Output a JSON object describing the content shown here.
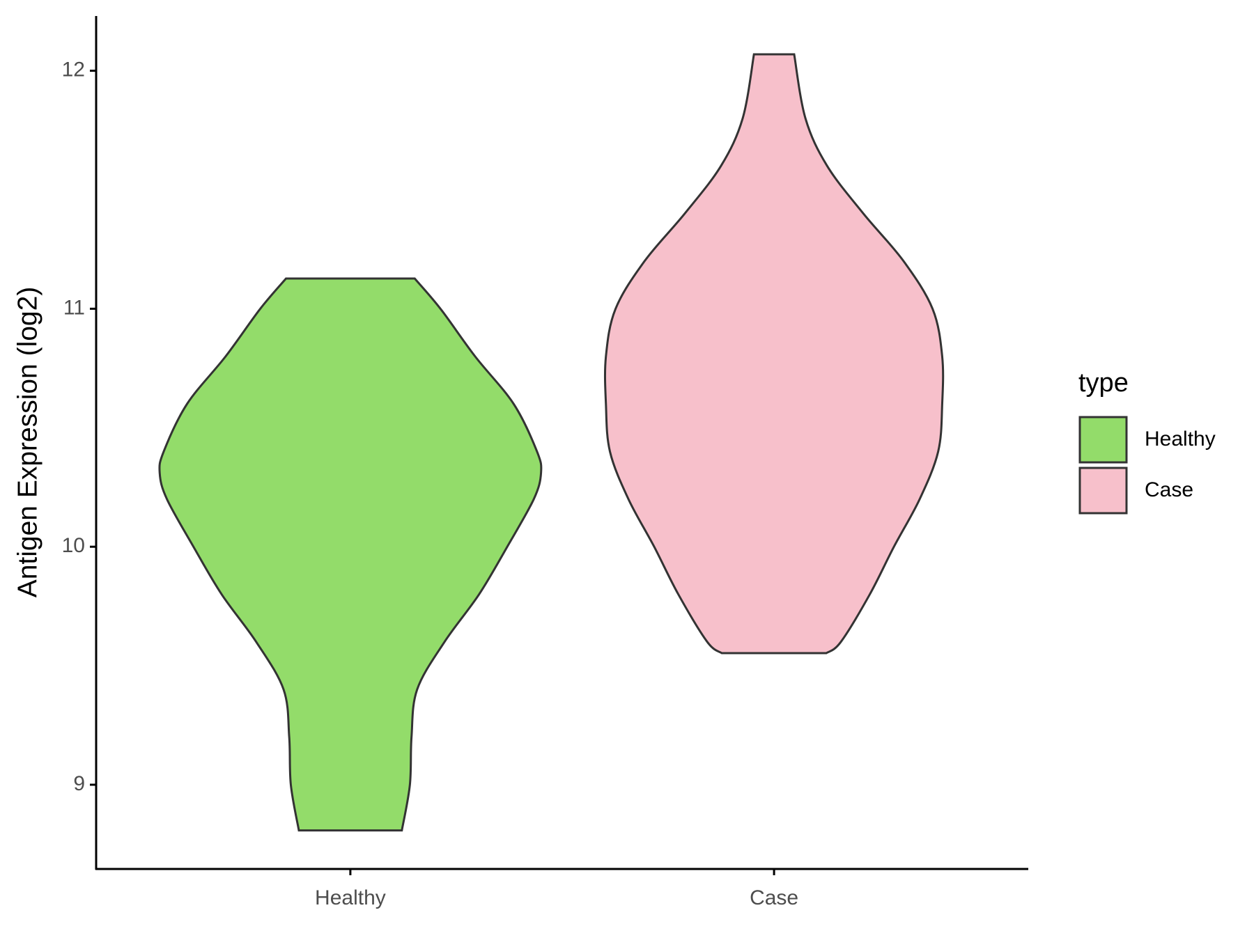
{
  "chart_data": {
    "type": "violin",
    "y_label": "Antigen Expression (log2)",
    "categories": [
      "Healthy",
      "Case"
    ],
    "legend_title": "type",
    "legend_position": "right",
    "ylim": [
      8.646,
      12.23
    ],
    "yticks": [
      9,
      10,
      11,
      12
    ],
    "grid": false,
    "series": [
      {
        "name": "Healthy",
        "color": "#93dc6a",
        "values": [
          8.808,
          9.0,
          9.2,
          9.4,
          9.6,
          9.8,
          10.0,
          10.2,
          10.31,
          10.4,
          10.6,
          10.8,
          11.0,
          11.127
        ],
        "density": [
          64,
          74,
          76,
          83,
          117,
          160,
          195,
          228,
          237,
          232,
          203,
          155,
          112,
          80
        ]
      },
      {
        "name": "Case",
        "color": "#f7c0cb",
        "values": [
          9.553,
          9.6,
          9.8,
          10.0,
          10.2,
          10.4,
          10.6,
          10.8,
          11.0,
          11.2,
          11.4,
          11.6,
          11.8,
          12.069
        ],
        "density": [
          65,
          83,
          119,
          149,
          181,
          204,
          209,
          209,
          197,
          161,
          111,
          66,
          39,
          25
        ]
      }
    ]
  }
}
